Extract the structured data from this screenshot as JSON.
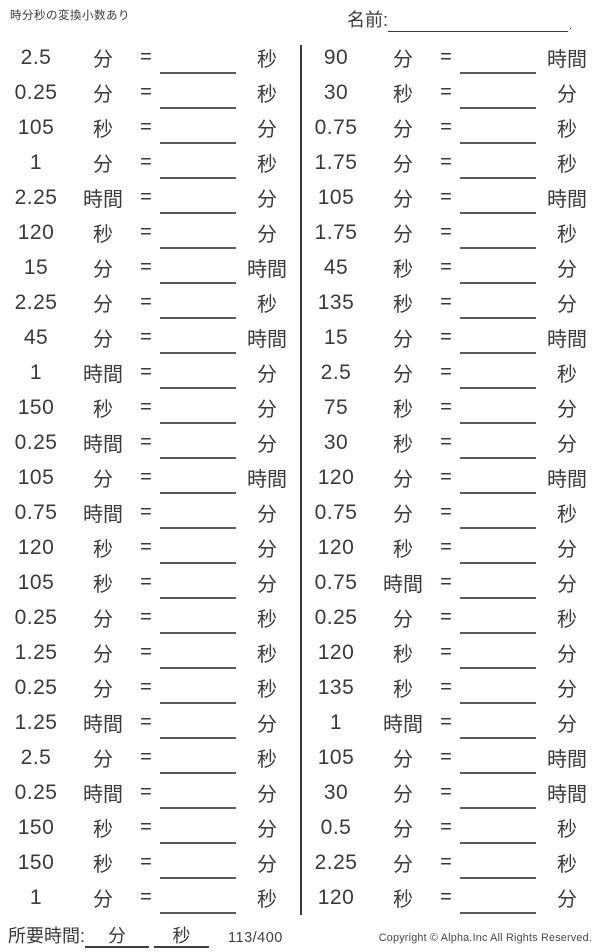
{
  "header": {
    "title": "時分秒の変換小数あり",
    "name_label": "名前:",
    "name_value": "",
    "name_suffix": "."
  },
  "equals_sign": "=",
  "columns": [
    {
      "problems": [
        {
          "value": "2.5",
          "from": "分",
          "to": "秒"
        },
        {
          "value": "0.25",
          "from": "分",
          "to": "秒"
        },
        {
          "value": "105",
          "from": "秒",
          "to": "分"
        },
        {
          "value": "1",
          "from": "分",
          "to": "秒"
        },
        {
          "value": "2.25",
          "from": "時間",
          "to": "分"
        },
        {
          "value": "120",
          "from": "秒",
          "to": "分"
        },
        {
          "value": "15",
          "from": "分",
          "to": "時間"
        },
        {
          "value": "2.25",
          "from": "分",
          "to": "秒"
        },
        {
          "value": "45",
          "from": "分",
          "to": "時間"
        },
        {
          "value": "1",
          "from": "時間",
          "to": "分"
        },
        {
          "value": "150",
          "from": "秒",
          "to": "分"
        },
        {
          "value": "0.25",
          "from": "時間",
          "to": "分"
        },
        {
          "value": "105",
          "from": "分",
          "to": "時間"
        },
        {
          "value": "0.75",
          "from": "時間",
          "to": "分"
        },
        {
          "value": "120",
          "from": "秒",
          "to": "分"
        },
        {
          "value": "105",
          "from": "秒",
          "to": "分"
        },
        {
          "value": "0.25",
          "from": "分",
          "to": "秒"
        },
        {
          "value": "1.25",
          "from": "分",
          "to": "秒"
        },
        {
          "value": "0.25",
          "from": "分",
          "to": "秒"
        },
        {
          "value": "1.25",
          "from": "時間",
          "to": "分"
        },
        {
          "value": "2.5",
          "from": "分",
          "to": "秒"
        },
        {
          "value": "0.25",
          "from": "時間",
          "to": "分"
        },
        {
          "value": "150",
          "from": "秒",
          "to": "分"
        },
        {
          "value": "150",
          "from": "秒",
          "to": "分"
        },
        {
          "value": "1",
          "from": "分",
          "to": "秒"
        }
      ]
    },
    {
      "problems": [
        {
          "value": "90",
          "from": "分",
          "to": "時間"
        },
        {
          "value": "30",
          "from": "秒",
          "to": "分"
        },
        {
          "value": "0.75",
          "from": "分",
          "to": "秒"
        },
        {
          "value": "1.75",
          "from": "分",
          "to": "秒"
        },
        {
          "value": "105",
          "from": "分",
          "to": "時間"
        },
        {
          "value": "1.75",
          "from": "分",
          "to": "秒"
        },
        {
          "value": "45",
          "from": "秒",
          "to": "分"
        },
        {
          "value": "135",
          "from": "秒",
          "to": "分"
        },
        {
          "value": "15",
          "from": "分",
          "to": "時間"
        },
        {
          "value": "2.5",
          "from": "分",
          "to": "秒"
        },
        {
          "value": "75",
          "from": "秒",
          "to": "分"
        },
        {
          "value": "30",
          "from": "秒",
          "to": "分"
        },
        {
          "value": "120",
          "from": "分",
          "to": "時間"
        },
        {
          "value": "0.75",
          "from": "分",
          "to": "秒"
        },
        {
          "value": "120",
          "from": "秒",
          "to": "分"
        },
        {
          "value": "0.75",
          "from": "時間",
          "to": "分"
        },
        {
          "value": "0.25",
          "from": "分",
          "to": "秒"
        },
        {
          "value": "120",
          "from": "秒",
          "to": "分"
        },
        {
          "value": "135",
          "from": "秒",
          "to": "分"
        },
        {
          "value": "1",
          "from": "時間",
          "to": "分"
        },
        {
          "value": "105",
          "from": "分",
          "to": "時間"
        },
        {
          "value": "30",
          "from": "分",
          "to": "時間"
        },
        {
          "value": "0.5",
          "from": "分",
          "to": "秒"
        },
        {
          "value": "2.25",
          "from": "分",
          "to": "秒"
        },
        {
          "value": "120",
          "from": "秒",
          "to": "分"
        }
      ]
    }
  ],
  "footer": {
    "elapsed_label": "所要時間:",
    "elapsed_minutes_unit": "分",
    "elapsed_seconds_unit": "秒",
    "page_number": "113/400",
    "copyright": "Copyright © Alpha.Inc All Rights Reserved."
  }
}
